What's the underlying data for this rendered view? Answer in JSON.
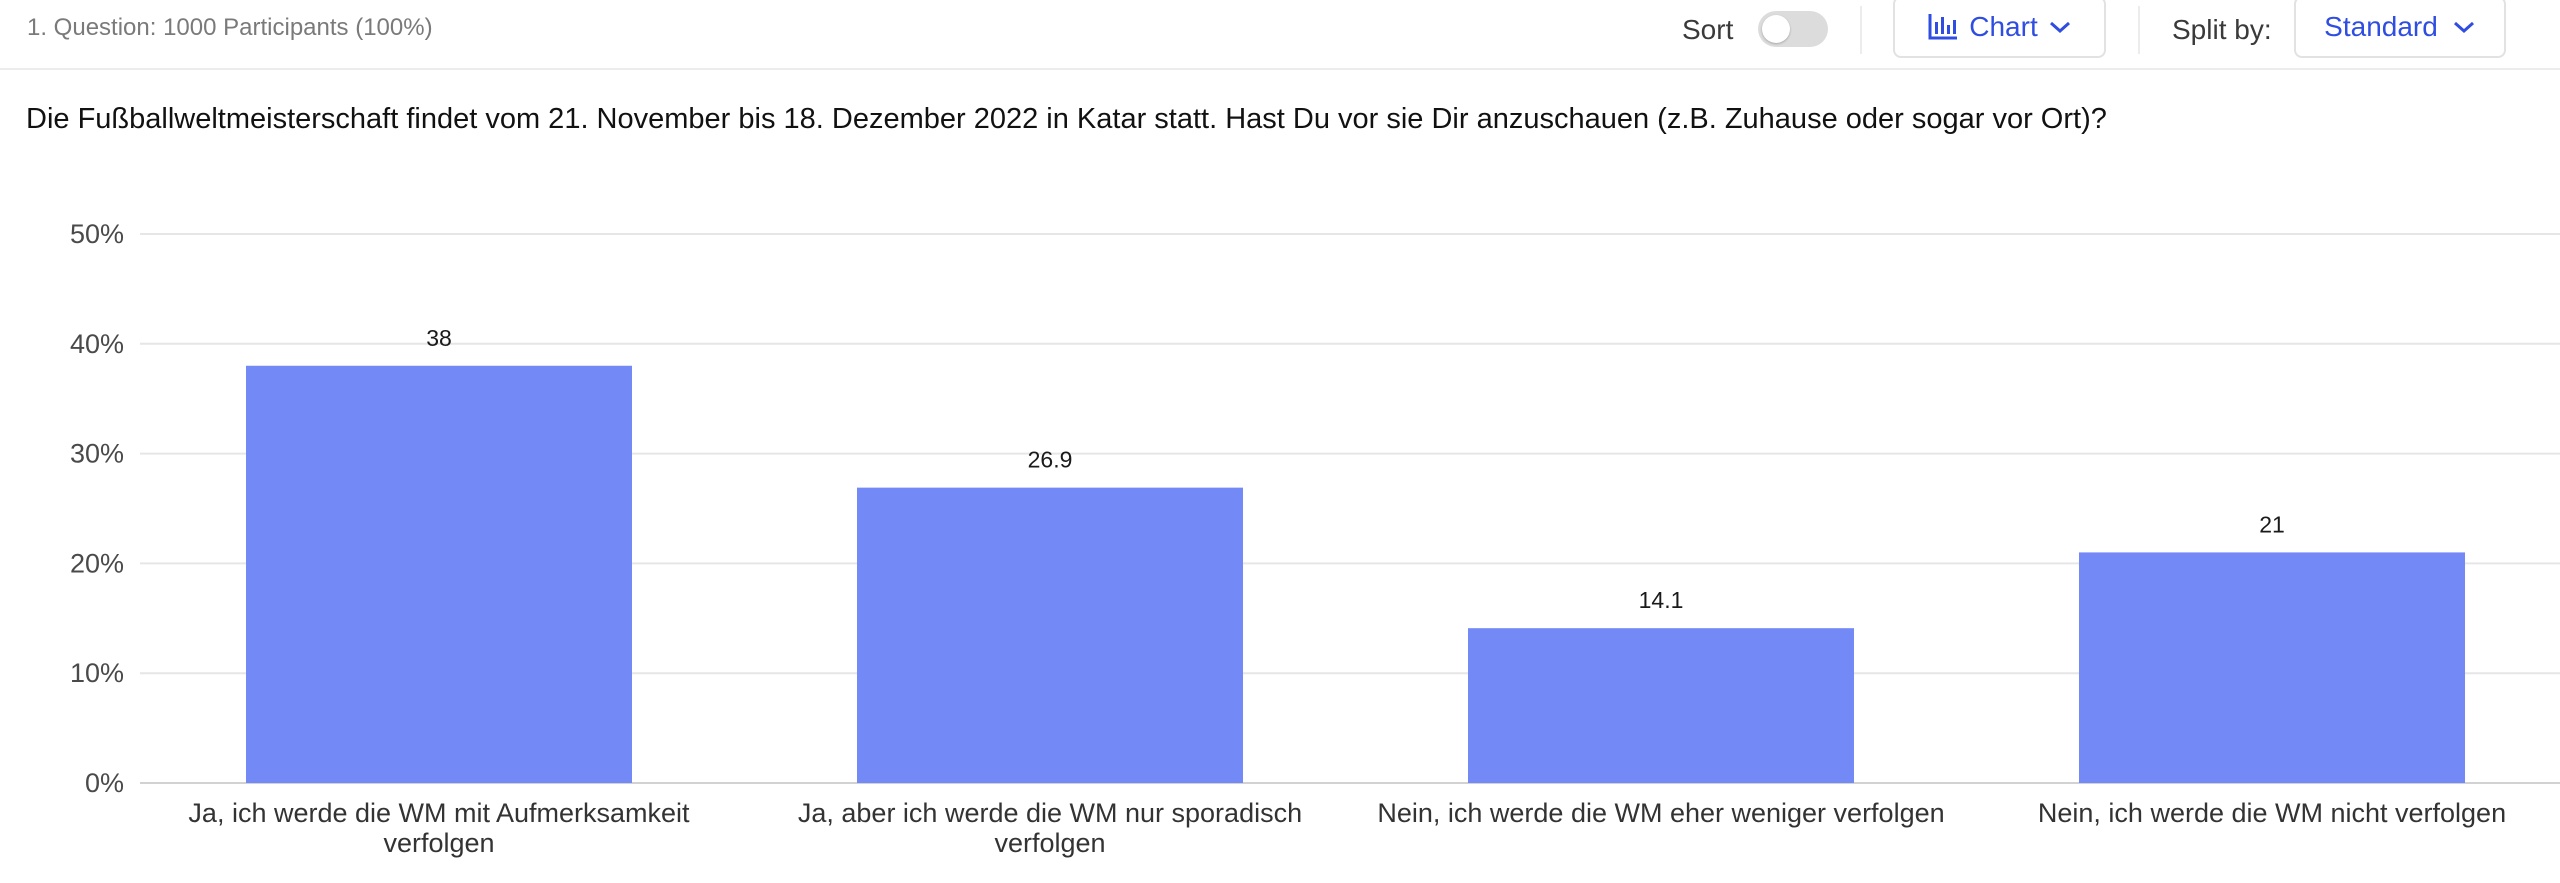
{
  "header": {
    "meta": "1. Question: 1000 Participants (100%)",
    "sort_label": "Sort",
    "chart_button_label": "Chart",
    "split_label": "Split by:",
    "split_value": "Standard"
  },
  "question": "Die Fußballweltmeisterschaft findet vom 21. November bis 18. Dezember 2022 in Katar statt. Hast Du vor sie Dir anzuschauen (z.B. Zuhause oder sogar vor Ort)?",
  "colors": {
    "accent": "#2f4de0",
    "bar": "#7289f6",
    "grid": "#e6e6e6"
  },
  "chart_data": {
    "type": "bar",
    "categories": [
      [
        "Ja, ich werde die WM mit Aufmerksamkeit",
        "verfolgen"
      ],
      [
        "Ja, aber ich werde die WM nur sporadisch",
        "verfolgen"
      ],
      [
        "Nein, ich werde die WM eher weniger verfolgen"
      ],
      [
        "Nein, ich werde die WM nicht verfolgen"
      ]
    ],
    "values": [
      38,
      26.9,
      14.1,
      21
    ],
    "value_labels": [
      "38",
      "26.9",
      "14.1",
      "21"
    ],
    "yticks": [
      "0%",
      "10%",
      "20%",
      "30%",
      "40%",
      "50%"
    ],
    "ylim": [
      0,
      50
    ],
    "grid": true
  }
}
